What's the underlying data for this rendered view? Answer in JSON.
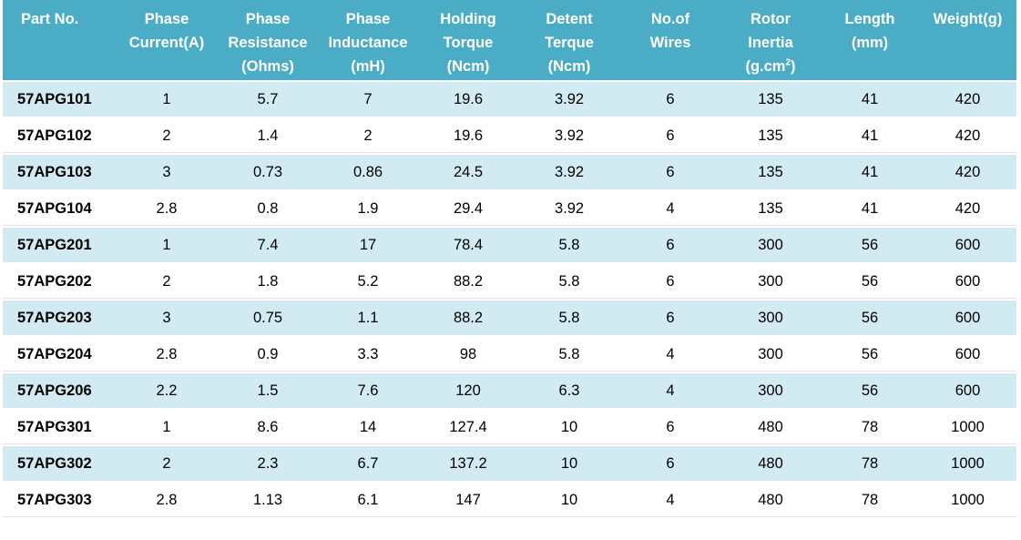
{
  "columns": [
    {
      "lines": [
        "Part No."
      ]
    },
    {
      "lines": [
        "Phase",
        "Current(A)"
      ]
    },
    {
      "lines": [
        "Phase",
        "Resistance",
        "(Ohms)"
      ]
    },
    {
      "lines": [
        "Phase",
        "Inductance",
        "(mH)"
      ]
    },
    {
      "lines": [
        "Holding",
        "Torque",
        "(Ncm)"
      ]
    },
    {
      "lines": [
        "Detent",
        "Terque",
        "(Ncm)"
      ]
    },
    {
      "lines": [
        "No.of",
        "Wires"
      ]
    },
    {
      "lines": [
        "Rotor",
        "Inertia",
        "(g.cm"
      ],
      "sup": "2",
      "suffix": ")"
    },
    {
      "lines": [
        "Length",
        "(mm)"
      ]
    },
    {
      "lines": [
        "Weight(g)"
      ]
    }
  ],
  "rows": [
    [
      "57APG101",
      "1",
      "5.7",
      "7",
      "19.6",
      "3.92",
      "6",
      "135",
      "41",
      "420"
    ],
    [
      "57APG102",
      "2",
      "1.4",
      "2",
      "19.6",
      "3.92",
      "6",
      "135",
      "41",
      "420"
    ],
    [
      "57APG103",
      "3",
      "0.73",
      "0.86",
      "24.5",
      "3.92",
      "6",
      "135",
      "41",
      "420"
    ],
    [
      "57APG104",
      "2.8",
      "0.8",
      "1.9",
      "29.4",
      "3.92",
      "4",
      "135",
      "41",
      "420"
    ],
    [
      "57APG201",
      "1",
      "7.4",
      "17",
      "78.4",
      "5.8",
      "6",
      "300",
      "56",
      "600"
    ],
    [
      "57APG202",
      "2",
      "1.8",
      "5.2",
      "88.2",
      "5.8",
      "6",
      "300",
      "56",
      "600"
    ],
    [
      "57APG203",
      "3",
      "0.75",
      "1.1",
      "88.2",
      "5.8",
      "6",
      "300",
      "56",
      "600"
    ],
    [
      "57APG204",
      "2.8",
      "0.9",
      "3.3",
      "98",
      "5.8",
      "4",
      "300",
      "56",
      "600"
    ],
    [
      "57APG206",
      "2.2",
      "1.5",
      "7.6",
      "120",
      "6.3",
      "4",
      "300",
      "56",
      "600"
    ],
    [
      "57APG301",
      "1",
      "8.6",
      "14",
      "127.4",
      "10",
      "6",
      "480",
      "78",
      "1000"
    ],
    [
      "57APG302",
      "2",
      "2.3",
      "6.7",
      "137.2",
      "10",
      "6",
      "480",
      "78",
      "1000"
    ],
    [
      "57APG303",
      "2.8",
      "1.13",
      "6.1",
      "147",
      "10",
      "4",
      "480",
      "78",
      "1000"
    ]
  ],
  "colors": {
    "header_bg": "#4bacc6",
    "band_bg": "#d2eaf1"
  }
}
